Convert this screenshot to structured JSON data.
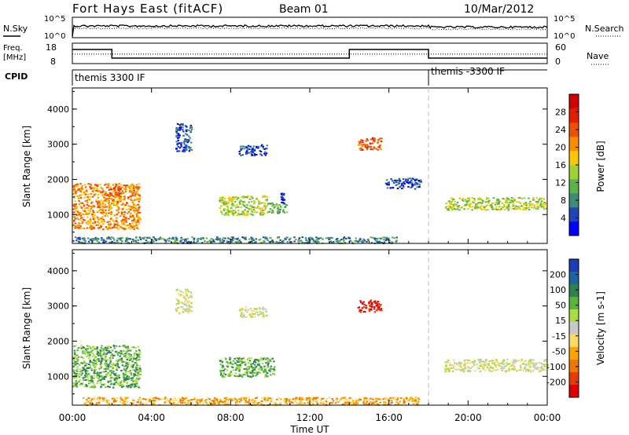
{
  "header": {
    "station": "Fort Hays East (fitACF)",
    "beam": "Beam 01",
    "date": "10/Mar/2012"
  },
  "noise_panel": {
    "left_label": "N.Sky",
    "right_label": "N.Search",
    "left_ticks": [
      "10^5",
      "10^0"
    ],
    "right_ticks": [
      "10^5",
      "10^0"
    ]
  },
  "freq_panel": {
    "left_label_line1": "Freq.",
    "left_label_line2": "[MHz]",
    "right_label": "Nave",
    "left_ticks": [
      "18",
      "8"
    ],
    "right_ticks": [
      "60",
      "0"
    ],
    "freq_steps": [
      {
        "t0": 0.0,
        "t1": 2.0,
        "f": 15.5
      },
      {
        "t0": 2.0,
        "t1": 14.0,
        "f": 10.0
      },
      {
        "t0": 14.0,
        "t1": 18.0,
        "f": 15.5
      },
      {
        "t0": 18.0,
        "t1": 24.0,
        "f": 10.0
      }
    ],
    "nave_level": 28
  },
  "cpid": {
    "label": "CPID",
    "segments": [
      {
        "name": "themis 3300 IF",
        "t0": 0.0
      },
      {
        "name": "themis -3300 IF",
        "t0": 18.0
      }
    ]
  },
  "x_axis": {
    "label": "Time UT",
    "ticks": [
      "00:00",
      "04:00",
      "08:00",
      "12:00",
      "16:00",
      "20:00",
      "00:00"
    ],
    "range_hours": [
      0,
      24
    ]
  },
  "y_axis": {
    "label": "Slant Range [km]",
    "ticks": [
      "1000",
      "2000",
      "3000",
      "4000"
    ],
    "range_km": [
      180,
      4600
    ]
  },
  "chart_data": [
    {
      "type": "heatmap",
      "quantity": "Power",
      "colorbar_label": "Power [dB]",
      "colorbar_ticks": [
        "4",
        "8",
        "12",
        "16",
        "20",
        "24",
        "28"
      ],
      "colorbar_range": [
        0,
        32
      ],
      "colors": [
        "#0000ff",
        "#1e46b4",
        "#3c8c78",
        "#5ab446",
        "#a0d232",
        "#fac800",
        "#fa8c00",
        "#f05000",
        "#e61e00",
        "#d20000"
      ],
      "regions": [
        {
          "t0": 0.0,
          "t1": 3.4,
          "r0": 600,
          "r1": 1900,
          "level": 6
        },
        {
          "t0": 1.8,
          "t1": 2.4,
          "r0": 1500,
          "r1": 1800,
          "level": 7
        },
        {
          "t0": 7.4,
          "t1": 9.8,
          "r0": 1000,
          "r1": 1550,
          "level": 4
        },
        {
          "t0": 9.8,
          "t1": 10.8,
          "r0": 1050,
          "r1": 1350,
          "level": 3
        },
        {
          "t0": 14.4,
          "t1": 15.6,
          "r0": 2850,
          "r1": 3200,
          "level": 7
        },
        {
          "t0": 5.2,
          "t1": 6.0,
          "r0": 2800,
          "r1": 3600,
          "level": 1
        },
        {
          "t0": 10.5,
          "t1": 10.7,
          "r0": 1350,
          "r1": 1650,
          "level": 0
        },
        {
          "t0": 15.8,
          "t1": 17.6,
          "r0": 1750,
          "r1": 2050,
          "level": 1
        },
        {
          "t0": 18.8,
          "t1": 24.0,
          "r0": 1150,
          "r1": 1500,
          "level": 4
        },
        {
          "t0": 8.4,
          "t1": 9.8,
          "r0": 2700,
          "r1": 3000,
          "level": 1
        },
        {
          "t0": 0.0,
          "t1": 16.5,
          "r0": 200,
          "r1": 380,
          "level": 2
        }
      ]
    },
    {
      "type": "heatmap",
      "quantity": "Velocity",
      "colorbar_label": "Velocity [m s-1]",
      "colorbar_ticks": [
        "200",
        "100",
        "50",
        "15",
        "-15",
        "-50",
        "-100",
        "-200"
      ],
      "colorbar_range": [
        -300,
        300
      ],
      "colors": [
        "#1e3cb4",
        "#1e64a0",
        "#2d8250",
        "#5ab43c",
        "#aadc46",
        "#c8c8c8",
        "#fadc64",
        "#faa500",
        "#f07800",
        "#e63c00",
        "#dc0000"
      ],
      "regions": [
        {
          "t0": 0.0,
          "t1": 3.4,
          "r0": 700,
          "r1": 1900,
          "level": 3
        },
        {
          "t0": 7.4,
          "t1": 10.2,
          "r0": 1000,
          "r1": 1550,
          "level": 3
        },
        {
          "t0": 14.4,
          "t1": 15.6,
          "r0": 2850,
          "r1": 3200,
          "level": 10
        },
        {
          "t0": 18.8,
          "t1": 24.0,
          "r0": 1150,
          "r1": 1500,
          "level": 5
        },
        {
          "t0": 8.4,
          "t1": 9.8,
          "r0": 2700,
          "r1": 3000,
          "level": 5
        },
        {
          "t0": 0.5,
          "t1": 17.5,
          "r0": 200,
          "r1": 420,
          "level": 7
        },
        {
          "t0": 5.2,
          "t1": 6.0,
          "r0": 2800,
          "r1": 3500,
          "level": 5
        }
      ]
    }
  ]
}
